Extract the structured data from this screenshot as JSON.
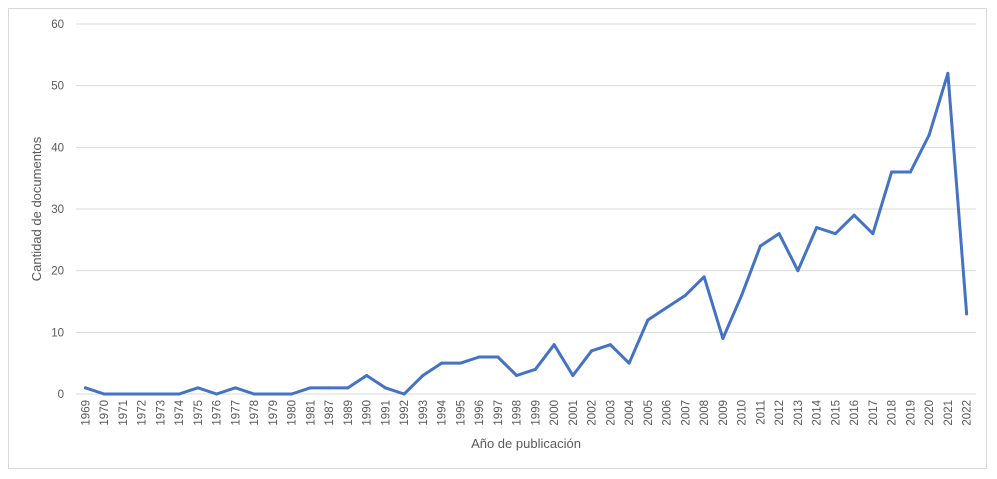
{
  "chart_data": {
    "type": "line",
    "title": "",
    "xlabel": "Año de publicación",
    "ylabel": "Cantidad de documentos",
    "ylim": [
      0,
      60
    ],
    "yticks": [
      0,
      10,
      20,
      30,
      40,
      50,
      60
    ],
    "grid": true,
    "legend": "none",
    "line_color": "#4472c4",
    "categories": [
      "1969",
      "1970",
      "1971",
      "1972",
      "1973",
      "1974",
      "1975",
      "1976",
      "1977",
      "1978",
      "1979",
      "1980",
      "1981",
      "1987",
      "1989",
      "1990",
      "1991",
      "1992",
      "1993",
      "1994",
      "1995",
      "1996",
      "1997",
      "1998",
      "1999",
      "2000",
      "2001",
      "2002",
      "2003",
      "2004",
      "2005",
      "2006",
      "2007",
      "2008",
      "2009",
      "2010",
      "2011",
      "2012",
      "2013",
      "2014",
      "2015",
      "2016",
      "2017",
      "2018",
      "2019",
      "2020",
      "2021",
      "2022"
    ],
    "series": [
      {
        "values": [
          1,
          0,
          0,
          0,
          0,
          0,
          1,
          0,
          1,
          0,
          0,
          0,
          1,
          1,
          1,
          3,
          1,
          0,
          3,
          5,
          5,
          6,
          6,
          3,
          4,
          8,
          3,
          7,
          8,
          5,
          12,
          14,
          16,
          19,
          9,
          16,
          24,
          26,
          20,
          27,
          26,
          29,
          26,
          36,
          36,
          42,
          52,
          13
        ]
      }
    ]
  }
}
